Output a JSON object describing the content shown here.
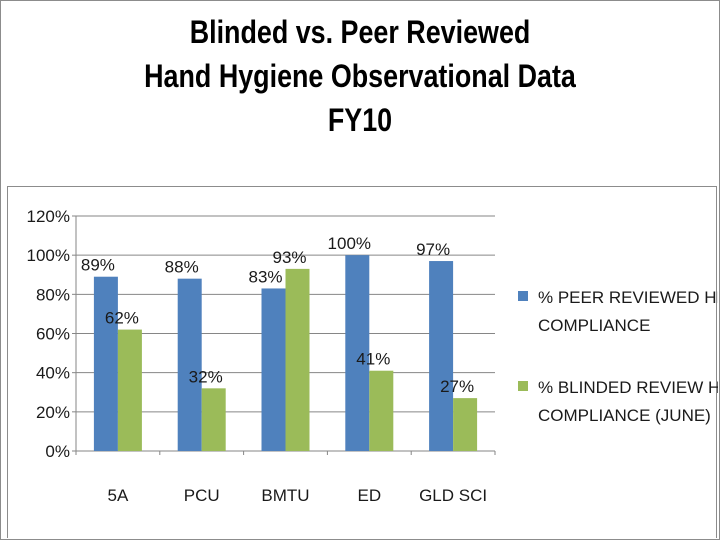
{
  "title_lines": [
    "Blinded vs. Peer Reviewed",
    "Hand Hygiene Observational Data",
    "FY10"
  ],
  "chart_data": {
    "type": "bar",
    "title": "Blinded vs. Peer Reviewed Hand Hygiene Observational Data FY10",
    "categories": [
      "5A",
      "PCU",
      "BMTU",
      "ED",
      "GLD SCI"
    ],
    "series": [
      {
        "name": "% PEER REVIEWED HH COMPLIANCE",
        "legend_lines": [
          "% PEER REVIEWED HH",
          "COMPLIANCE"
        ],
        "color": "#4f81bd",
        "values": [
          89,
          88,
          83,
          100,
          97
        ],
        "labels": [
          "89%",
          "88%",
          "83%",
          "100%",
          "97%"
        ]
      },
      {
        "name": "% BLINDED REVIEW HH COMPLIANCE (JUNE)",
        "legend_lines": [
          "% BLINDED REVIEW HH",
          "COMPLIANCE (JUNE)"
        ],
        "color": "#9bbb59",
        "values": [
          62,
          32,
          93,
          41,
          27
        ],
        "labels": [
          "62%",
          "32%",
          "93%",
          "41%",
          "27%"
        ]
      }
    ],
    "ylim": [
      0,
      120
    ],
    "yticks": [
      0,
      20,
      40,
      60,
      80,
      100,
      120
    ],
    "ytick_labels": [
      "0%",
      "20%",
      "40%",
      "60%",
      "80%",
      "100%",
      "120%"
    ],
    "xlabel": "",
    "ylabel": "",
    "grid": true,
    "gridline_color": "#868686",
    "legend_position": "right"
  }
}
